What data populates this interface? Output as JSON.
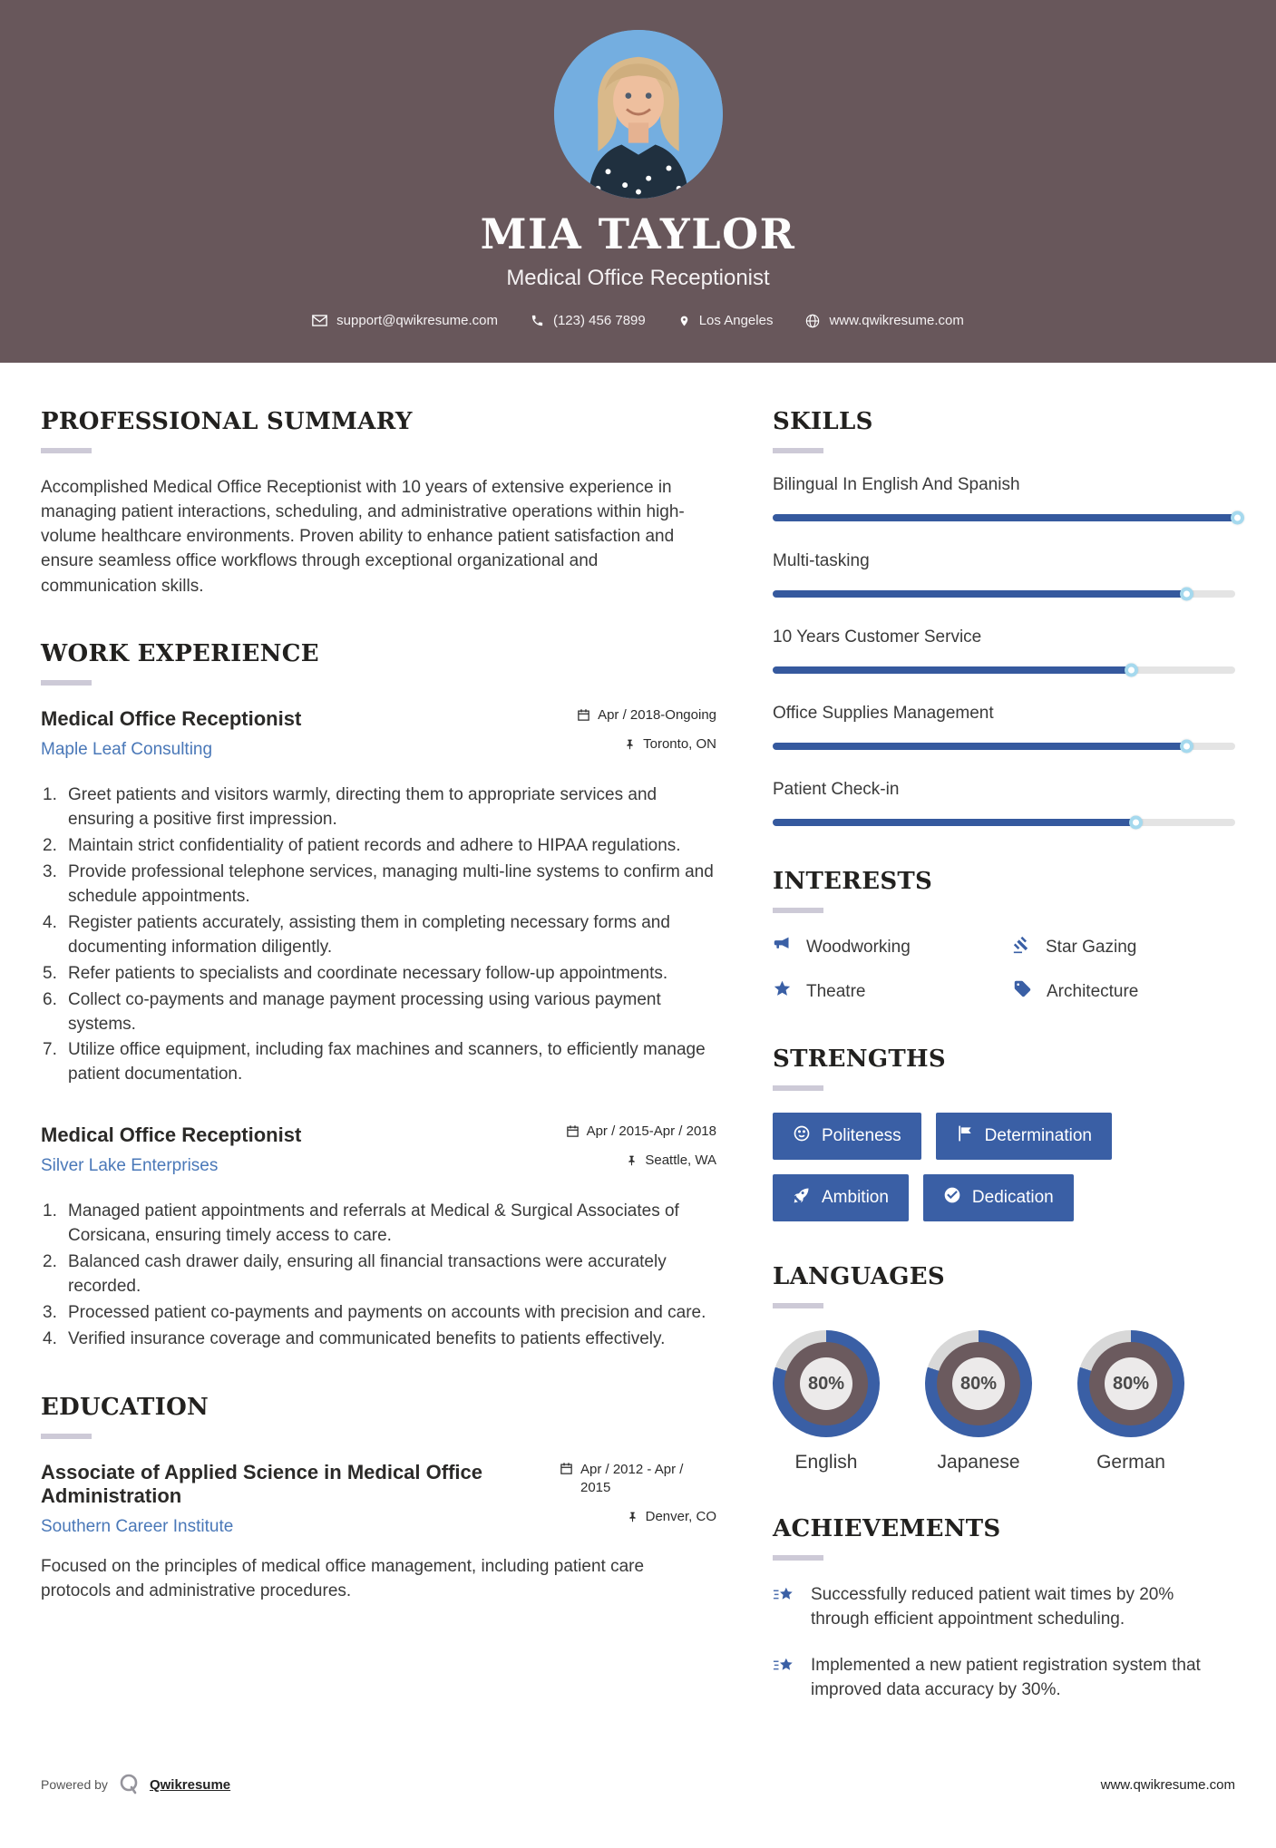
{
  "header": {
    "name": "MIA TAYLOR",
    "title": "Medical Office Receptionist",
    "contact": {
      "email": "support@qwikresume.com",
      "phone": "(123) 456 7899",
      "location": "Los Angeles",
      "website": "www.qwikresume.com"
    }
  },
  "summary": {
    "heading": "PROFESSIONAL SUMMARY",
    "text": "Accomplished Medical Office Receptionist with 10 years of extensive experience in managing patient interactions, scheduling, and administrative operations within high-volume healthcare environments. Proven ability to enhance patient satisfaction and ensure seamless office workflows through exceptional organizational and communication skills."
  },
  "work": {
    "heading": "WORK EXPERIENCE",
    "jobs": [
      {
        "title": "Medical Office Receptionist",
        "company": "Maple Leaf Consulting",
        "dates": "Apr / 2018-Ongoing",
        "location": "Toronto, ON",
        "points": [
          "Greet patients and visitors warmly, directing them to appropriate services and ensuring a positive first impression.",
          "Maintain strict confidentiality of patient records and adhere to HIPAA regulations.",
          "Provide professional telephone services, managing multi-line systems to confirm and schedule appointments.",
          "Register patients accurately, assisting them in completing necessary forms and documenting information diligently.",
          "Refer patients to specialists and coordinate necessary follow-up appointments.",
          "Collect co-payments and manage payment processing using various payment systems.",
          "Utilize office equipment, including fax machines and scanners, to efficiently manage patient documentation."
        ]
      },
      {
        "title": "Medical Office Receptionist",
        "company": "Silver Lake Enterprises",
        "dates": "Apr / 2015-Apr / 2018",
        "location": "Seattle, WA",
        "points": [
          "Managed patient appointments and referrals at Medical & Surgical Associates of Corsicana, ensuring timely access to care.",
          "Balanced cash drawer daily, ensuring all financial transactions were accurately recorded.",
          "Processed patient co-payments and payments on accounts with precision and care.",
          "Verified insurance coverage and communicated benefits to patients effectively."
        ]
      }
    ]
  },
  "education": {
    "heading": "EDUCATION",
    "degree": "Associate of Applied Science in Medical Office Administration",
    "school": "Southern Career Institute",
    "dates": "Apr / 2012 - Apr / 2015",
    "location": "Denver, CO",
    "description": "Focused on the principles of medical office management, including patient care protocols and administrative procedures."
  },
  "skills": {
    "heading": "SKILLS",
    "items": [
      {
        "label": "Bilingual In English And Spanish",
        "percent": 100
      },
      {
        "label": "Multi-tasking",
        "percent": 89
      },
      {
        "label": "10 Years Customer Service",
        "percent": 77
      },
      {
        "label": "Office Supplies Management",
        "percent": 89
      },
      {
        "label": "Patient Check-in",
        "percent": 78
      }
    ]
  },
  "interests": {
    "heading": "INTERESTS",
    "items": [
      {
        "label": "Woodworking"
      },
      {
        "label": "Star Gazing"
      },
      {
        "label": "Theatre"
      },
      {
        "label": "Architecture"
      }
    ]
  },
  "strengths": {
    "heading": "STRENGTHS",
    "items": [
      {
        "label": "Politeness"
      },
      {
        "label": "Determination"
      },
      {
        "label": "Ambition"
      },
      {
        "label": "Dedication"
      }
    ]
  },
  "languages": {
    "heading": "LANGUAGES",
    "items": [
      {
        "label": "English",
        "percent": 80,
        "percent_text": "80%"
      },
      {
        "label": "Japanese",
        "percent": 80,
        "percent_text": "80%"
      },
      {
        "label": "German",
        "percent": 80,
        "percent_text": "80%"
      }
    ]
  },
  "achievements": {
    "heading": "ACHIEVEMENTS",
    "items": [
      "Successfully reduced patient wait times by 20% through efficient appointment scheduling.",
      "Implemented a new patient registration system that improved data accuracy by 30%."
    ]
  },
  "footer": {
    "powered_by": "Powered by",
    "brand": "Qwikresume",
    "website": "www.qwikresume.com"
  },
  "colors": {
    "header_bg": "#68575b",
    "accent_blue": "#3a5fa5",
    "bar_blue": "#35599e",
    "link_blue": "#4a78b8",
    "donut_blue": "#3a5fa5",
    "donut_track": "#d8d8d8",
    "donut_inner": "#6b5a5e",
    "heading_underline": "#cdcad7"
  }
}
